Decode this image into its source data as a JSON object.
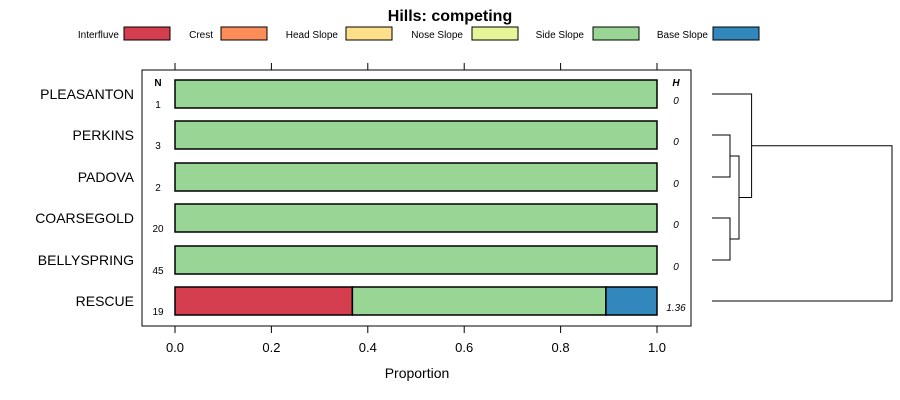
{
  "chart_data": {
    "type": "bar",
    "orientation": "horizontal",
    "stacked": true,
    "title": "Hills: competing",
    "xlabel": "Proportion",
    "xlim": [
      0,
      1
    ],
    "x_ticks": [
      "0.0",
      "0.2",
      "0.4",
      "0.6",
      "0.8",
      "1.0"
    ],
    "n_header": "N",
    "h_header": "H",
    "legend_position": "top",
    "legend": [
      {
        "name": "Interfluve",
        "color": "#D53E4F"
      },
      {
        "name": "Crest",
        "color": "#FC8D59"
      },
      {
        "name": "Head Slope",
        "color": "#FEE08B"
      },
      {
        "name": "Nose Slope",
        "color": "#E6F598"
      },
      {
        "name": "Side Slope",
        "color": "#99D594"
      },
      {
        "name": "Base Slope",
        "color": "#3288BD"
      }
    ],
    "categories": [
      "PLEASANTON",
      "PERKINS",
      "PADOVA",
      "COARSEGOLD",
      "BELLYSPRING",
      "RESCUE"
    ],
    "n": [
      "1",
      "3",
      "2",
      "20",
      "45",
      "19"
    ],
    "h": [
      "0",
      "0",
      "0",
      "0",
      "0",
      "1.36"
    ],
    "series": [
      {
        "name": "Interfluve",
        "values": [
          0,
          0,
          0,
          0,
          0,
          0.368
        ]
      },
      {
        "name": "Crest",
        "values": [
          0,
          0,
          0,
          0,
          0,
          0
        ]
      },
      {
        "name": "Head Slope",
        "values": [
          0,
          0,
          0,
          0,
          0,
          0
        ]
      },
      {
        "name": "Nose Slope",
        "values": [
          0,
          0,
          0,
          0,
          0,
          0
        ]
      },
      {
        "name": "Side Slope",
        "values": [
          1,
          1,
          1,
          1,
          1,
          0.526
        ]
      },
      {
        "name": "Base Slope",
        "values": [
          0,
          0,
          0,
          0,
          0,
          0.106
        ]
      }
    ],
    "dendrogram": {
      "leaves": [
        "PLEASANTON",
        "PERKINS",
        "PADOVA",
        "COARSEGOLD",
        "BELLYSPRING",
        "RESCUE"
      ],
      "merges": [
        {
          "a": "PERKINS",
          "b": "PADOVA",
          "height": 0.1
        },
        {
          "a": "COARSEGOLD",
          "b": "BELLYSPRING",
          "height": 0.1
        },
        {
          "a": 0,
          "b": 1,
          "height": 0.15
        },
        {
          "a": 2,
          "b": "PLEASANTON",
          "height": 0.22
        },
        {
          "a": 3,
          "b": "RESCUE",
          "height": 1.0
        }
      ]
    }
  }
}
